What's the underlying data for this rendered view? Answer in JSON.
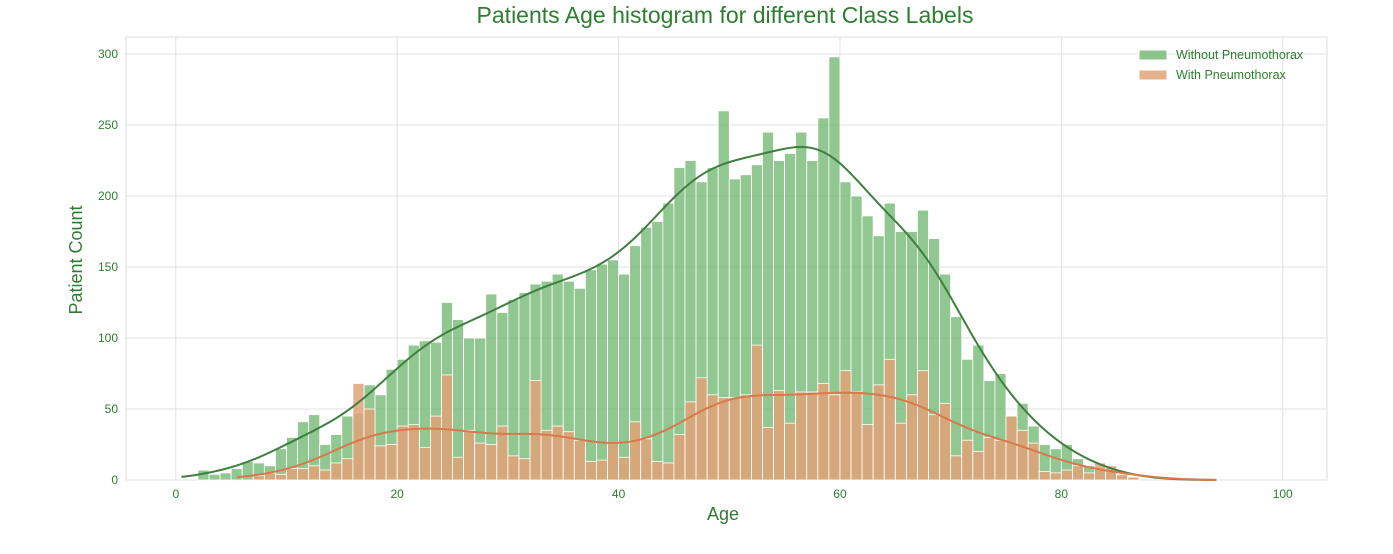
{
  "chart_data": {
    "type": "bar",
    "title": "Patients Age histogram for different Class Labels",
    "xlabel": "Age",
    "ylabel": "Patient Count",
    "xlim": [
      -4.5,
      104
    ],
    "ylim": [
      0,
      312
    ],
    "xticks": [
      0,
      20,
      40,
      60,
      80,
      100
    ],
    "yticks": [
      0,
      50,
      100,
      150,
      200,
      250,
      300
    ],
    "grid": true,
    "legend_position": "top-right",
    "bin_width": 1,
    "series": [
      {
        "name": "Without Pneumothorax",
        "color": "#66b266",
        "kde_color": "#3f7f3f",
        "bins_start": [
          2,
          3,
          4,
          5,
          6,
          7,
          8,
          9,
          10,
          11,
          12,
          13,
          14,
          15,
          16,
          17,
          18,
          19,
          20,
          21,
          22,
          23,
          24,
          25,
          26,
          27,
          28,
          29,
          30,
          31,
          32,
          33,
          34,
          35,
          36,
          37,
          38,
          39,
          40,
          41,
          42,
          43,
          44,
          45,
          46,
          47,
          48,
          49,
          50,
          51,
          52,
          53,
          54,
          55,
          56,
          57,
          58,
          59,
          60,
          61,
          62,
          63,
          64,
          65,
          66,
          67,
          68,
          69,
          70,
          71,
          72,
          73,
          74,
          75,
          76,
          77,
          78,
          79,
          80,
          81,
          82,
          83,
          84,
          85,
          86
        ],
        "values": [
          7,
          4,
          5,
          8,
          13,
          12,
          10,
          22,
          30,
          41,
          46,
          25,
          32,
          45,
          47,
          67,
          60,
          78,
          85,
          95,
          98,
          97,
          125,
          113,
          100,
          100,
          131,
          118,
          127,
          132,
          138,
          140,
          145,
          140,
          135,
          148,
          152,
          155,
          145,
          165,
          178,
          182,
          195,
          220,
          225,
          210,
          220,
          260,
          212,
          215,
          222,
          245,
          225,
          230,
          245,
          225,
          255,
          298,
          210,
          200,
          186,
          172,
          195,
          175,
          175,
          190,
          170,
          145,
          115,
          85,
          95,
          70,
          75,
          45,
          54,
          38,
          25,
          22,
          25,
          15,
          10,
          8,
          6,
          3,
          2
        ]
      },
      {
        "name": "With Pneumothorax",
        "color": "#e0a278",
        "kde_color": "#d9784a",
        "bins_start": [
          7,
          8,
          9,
          10,
          11,
          12,
          13,
          14,
          15,
          16,
          17,
          18,
          19,
          20,
          21,
          22,
          23,
          24,
          25,
          26,
          27,
          28,
          29,
          30,
          31,
          32,
          33,
          34,
          35,
          36,
          37,
          38,
          39,
          40,
          41,
          42,
          43,
          44,
          45,
          46,
          47,
          48,
          49,
          50,
          51,
          52,
          53,
          54,
          55,
          56,
          57,
          58,
          59,
          60,
          61,
          62,
          63,
          64,
          65,
          66,
          67,
          68,
          69,
          70,
          71,
          72,
          73,
          74,
          75,
          76,
          77,
          78,
          79,
          80,
          81,
          82,
          83,
          84,
          85,
          86
        ],
        "values": [
          3,
          5,
          4,
          8,
          8,
          10,
          7,
          12,
          15,
          68,
          50,
          24,
          25,
          38,
          39,
          23,
          45,
          74,
          16,
          35,
          26,
          25,
          38,
          17,
          15,
          70,
          35,
          38,
          34,
          28,
          13,
          14,
          26,
          16,
          41,
          29,
          13,
          12,
          32,
          55,
          72,
          60,
          58,
          58,
          60,
          95,
          37,
          63,
          40,
          62,
          62,
          68,
          60,
          77,
          62,
          39,
          67,
          85,
          40,
          60,
          77,
          46,
          54,
          17,
          28,
          20,
          30,
          28,
          45,
          35,
          26,
          6,
          5,
          7,
          10,
          5,
          12,
          10,
          4,
          2
        ]
      }
    ]
  }
}
